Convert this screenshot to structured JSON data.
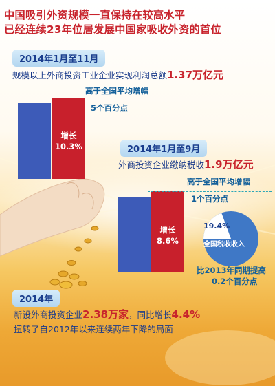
{
  "title": {
    "line1": "中国吸引外资规模一直保持在较高水平",
    "line2": "已经连续23年位居发展中国家吸收外资的首位"
  },
  "section1": {
    "period": "2014年1月至11月",
    "text_prefix": "规模以上外商投资工业企业实现利润总额",
    "text_value": "1.37万亿元",
    "higher_label": "高于全国平均增幅",
    "higher_value": "5个百分点",
    "growth_label": "增长",
    "growth_value": "10.3%"
  },
  "section2": {
    "period": "2014年1月至9月",
    "text_prefix": "外商投资企业缴纳税收",
    "text_value": "1.9万亿元",
    "higher_label": "高于全国平均增幅",
    "higher_value": "1个百分点",
    "growth_label": "增长",
    "growth_value": "8.6%",
    "pie_share": "19.4%",
    "pie_share_fraction": 0.194,
    "pie_label": "全国税收收入",
    "compare_label": "比2013年同期提高",
    "compare_value": "0.2个百分点"
  },
  "section3": {
    "period": "2014年",
    "line1_prefix": "新设外商投资企业",
    "line1_value1": "2.38万家",
    "line1_mid": "，同比增长",
    "line1_value2": "4.4%",
    "line2": "扭转了自2012年以来连续两年下降的局面"
  },
  "colors": {
    "blue_bar": "#3d5bb8",
    "red_bar": "#c8202c",
    "pie_blue": "#3f78c6",
    "pie_light": "#ffffff",
    "title_red": "#c8232c"
  }
}
